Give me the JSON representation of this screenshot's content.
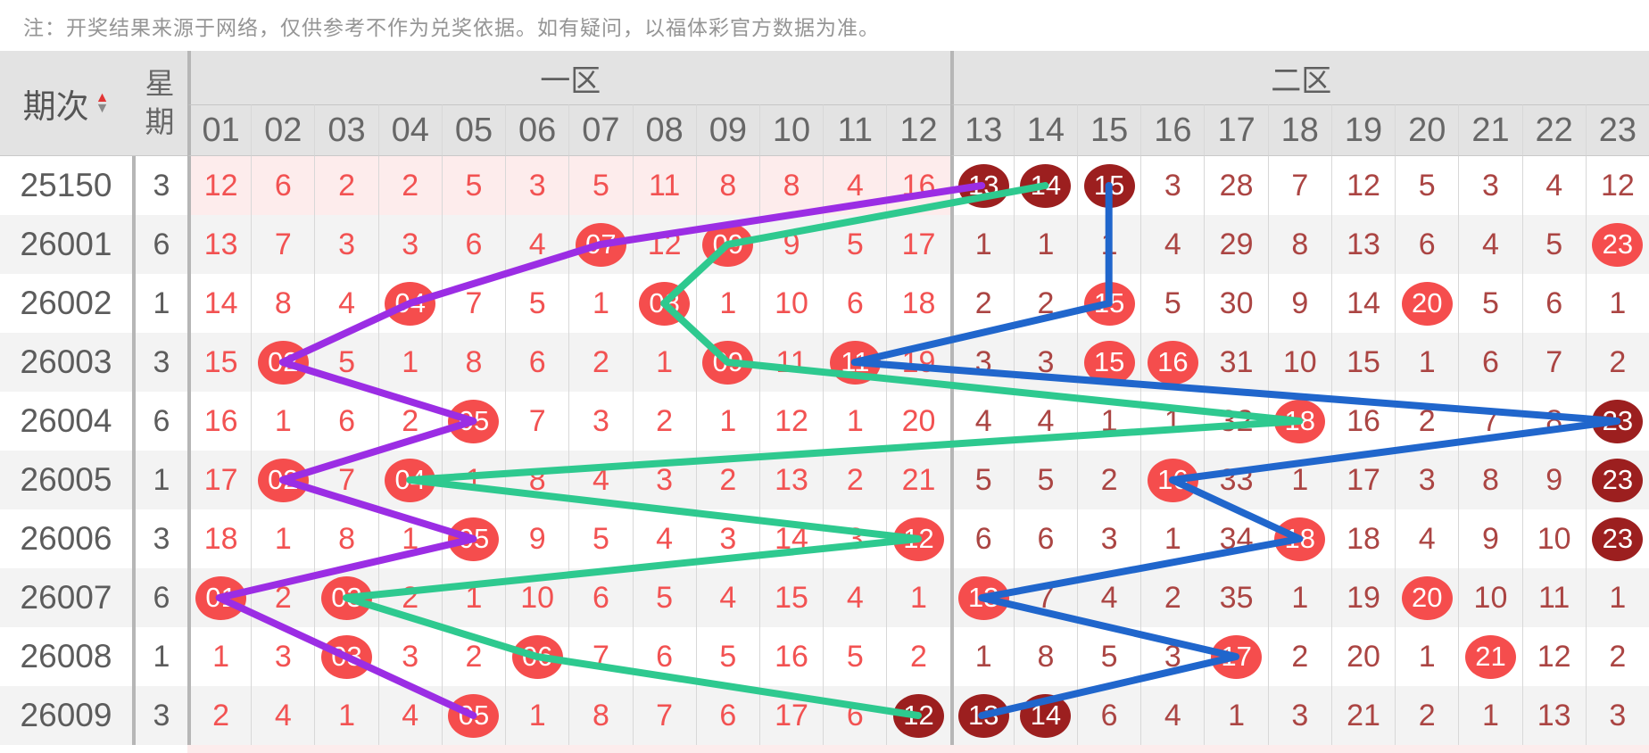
{
  "note": "注：开奖结果来源于网络，仅供参考不作为兑奖依据。如有疑问，以福体彩官方数据为准。",
  "header": {
    "period": "期次",
    "week": "星期",
    "zone1": "一区",
    "zone2": "二区",
    "zone1_cols": [
      "01",
      "02",
      "03",
      "04",
      "05",
      "06",
      "07",
      "08",
      "09",
      "10",
      "11",
      "12"
    ],
    "zone2_cols": [
      "13",
      "14",
      "15",
      "16",
      "17",
      "18",
      "19",
      "20",
      "21",
      "22",
      "23"
    ]
  },
  "colors": {
    "ball_red": "#f54d4d",
    "ball_dark": "#9c1f1f",
    "zone1_text": "#f25252",
    "zone2_text": "#ab4543",
    "line_purple": "#9b2de4",
    "line_green": "#2ec98f",
    "line_blue": "#2066cc"
  },
  "rows": [
    {
      "period": "25150",
      "week": "3",
      "cells": [
        "12",
        "6",
        "2",
        "2",
        "5",
        "3",
        "5",
        "11",
        "8",
        "8",
        "4",
        "16",
        {
          "v": "13",
          "circle": "dark"
        },
        {
          "v": "14",
          "circle": "dark"
        },
        {
          "v": "15",
          "circle": "dark"
        },
        "3",
        "28",
        "7",
        "12",
        "5",
        "3",
        "4",
        "12"
      ]
    },
    {
      "period": "26001",
      "week": "6",
      "cells": [
        "13",
        "7",
        "3",
        "3",
        "6",
        "4",
        {
          "v": "07",
          "circle": "red"
        },
        "12",
        {
          "v": "09",
          "circle": "red"
        },
        "9",
        "5",
        "17",
        "1",
        "1",
        "1",
        "4",
        "29",
        "8",
        "13",
        "6",
        "4",
        "5",
        {
          "v": "23",
          "circle": "red"
        }
      ]
    },
    {
      "period": "26002",
      "week": "1",
      "cells": [
        "14",
        "8",
        "4",
        {
          "v": "04",
          "circle": "red"
        },
        "7",
        "5",
        "1",
        {
          "v": "08",
          "circle": "red"
        },
        "1",
        "10",
        "6",
        "18",
        "2",
        "2",
        {
          "v": "15",
          "circle": "red"
        },
        "5",
        "30",
        "9",
        "14",
        {
          "v": "20",
          "circle": "red"
        },
        "5",
        "6",
        "1"
      ]
    },
    {
      "period": "26003",
      "week": "3",
      "cells": [
        "15",
        {
          "v": "02",
          "circle": "red"
        },
        "5",
        "1",
        "8",
        "6",
        "2",
        "1",
        {
          "v": "09",
          "circle": "red"
        },
        "11",
        {
          "v": "11",
          "circle": "red"
        },
        "19",
        "3",
        "3",
        {
          "v": "15",
          "circle": "red"
        },
        {
          "v": "16",
          "circle": "red"
        },
        "31",
        "10",
        "15",
        "1",
        "6",
        "7",
        "2"
      ]
    },
    {
      "period": "26004",
      "week": "6",
      "cells": [
        "16",
        "1",
        "6",
        "2",
        {
          "v": "05",
          "circle": "red"
        },
        "7",
        "3",
        "2",
        "1",
        "12",
        "1",
        "20",
        "4",
        "4",
        "1",
        "1",
        "32",
        {
          "v": "18",
          "circle": "red"
        },
        "16",
        "2",
        "7",
        "8",
        {
          "v": "23",
          "circle": "dark"
        }
      ]
    },
    {
      "period": "26005",
      "week": "1",
      "cells": [
        "17",
        {
          "v": "02",
          "circle": "red"
        },
        "7",
        {
          "v": "04",
          "circle": "red"
        },
        "1",
        "8",
        "4",
        "3",
        "2",
        "13",
        "2",
        "21",
        "5",
        "5",
        "2",
        {
          "v": "16",
          "circle": "red"
        },
        "33",
        "1",
        "17",
        "3",
        "8",
        "9",
        {
          "v": "23",
          "circle": "dark"
        }
      ]
    },
    {
      "period": "26006",
      "week": "3",
      "cells": [
        "18",
        "1",
        "8",
        "1",
        {
          "v": "05",
          "circle": "red"
        },
        "9",
        "5",
        "4",
        "3",
        "14",
        "3",
        {
          "v": "12",
          "circle": "red"
        },
        "6",
        "6",
        "3",
        "1",
        "34",
        {
          "v": "18",
          "circle": "red"
        },
        "18",
        "4",
        "9",
        "10",
        {
          "v": "23",
          "circle": "dark"
        }
      ]
    },
    {
      "period": "26007",
      "week": "6",
      "cells": [
        {
          "v": "01",
          "circle": "red"
        },
        "2",
        {
          "v": "03",
          "circle": "red"
        },
        "2",
        "1",
        "10",
        "6",
        "5",
        "4",
        "15",
        "4",
        "1",
        {
          "v": "13",
          "circle": "red"
        },
        "7",
        "4",
        "2",
        "35",
        "1",
        "19",
        {
          "v": "20",
          "circle": "red"
        },
        "10",
        "11",
        "1"
      ]
    },
    {
      "period": "26008",
      "week": "1",
      "cells": [
        "1",
        "3",
        {
          "v": "03",
          "circle": "red"
        },
        "3",
        "2",
        {
          "v": "06",
          "circle": "red"
        },
        "7",
        "6",
        "5",
        "16",
        "5",
        "2",
        "1",
        "8",
        "5",
        "3",
        {
          "v": "17",
          "circle": "red"
        },
        "2",
        "20",
        "1",
        {
          "v": "21",
          "circle": "red"
        },
        "12",
        "2"
      ]
    },
    {
      "period": "26009",
      "week": "3",
      "cells": [
        "2",
        "4",
        "1",
        "4",
        {
          "v": "05",
          "circle": "red"
        },
        "1",
        "8",
        "7",
        "6",
        "17",
        "6",
        {
          "v": "12",
          "circle": "dark"
        },
        {
          "v": "13",
          "circle": "dark"
        },
        {
          "v": "14",
          "circle": "dark"
        },
        "6",
        "4",
        "1",
        "3",
        "21",
        "2",
        "1",
        "13",
        "3"
      ]
    }
  ],
  "lines": [
    {
      "name": "green",
      "color": "#2ec98f",
      "points": [
        [
          14,
          0
        ],
        [
          9,
          1
        ],
        [
          8,
          2
        ],
        [
          9,
          3
        ],
        [
          18,
          4
        ],
        [
          4,
          5
        ],
        [
          12,
          6
        ],
        [
          3,
          7
        ],
        [
          6,
          8
        ],
        [
          12,
          9
        ]
      ]
    },
    {
      "name": "purple",
      "color": "#9b2de4",
      "points": [
        [
          13,
          0
        ],
        [
          7,
          1
        ],
        [
          4,
          2
        ],
        [
          2,
          3
        ],
        [
          5,
          4
        ],
        [
          2,
          5
        ],
        [
          5,
          6
        ],
        [
          1,
          7
        ],
        [
          3,
          8
        ],
        [
          5,
          9
        ]
      ]
    },
    {
      "name": "blue",
      "color": "#2066cc",
      "points": [
        [
          15,
          0
        ],
        [
          15,
          2
        ],
        [
          11,
          3
        ],
        [
          23,
          4
        ],
        [
          16,
          5
        ],
        [
          18,
          6
        ],
        [
          13,
          7
        ],
        [
          17,
          8
        ],
        [
          13,
          9
        ]
      ]
    }
  ]
}
